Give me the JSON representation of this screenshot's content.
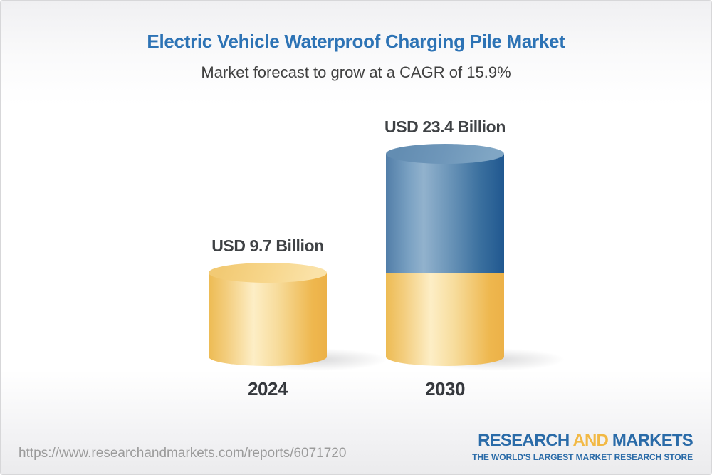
{
  "header": {
    "title": "Electric Vehicle Waterproof Charging Pile Market",
    "subtitle": "Market forecast to grow at a CAGR of 15.9%"
  },
  "chart_data": {
    "type": "bar",
    "bar_style": "3d-cylinder-stacked",
    "categories": [
      "2024",
      "2030"
    ],
    "values": [
      9.7,
      23.4
    ],
    "unit": "USD Billion",
    "value_labels": [
      "USD 9.7 Billion",
      "USD 23.4 Billion"
    ],
    "cagr_percent": 15.9,
    "legend": "none",
    "axes": "none",
    "colors": {
      "base_segment": "#f0bc54",
      "growth_segment": "#4a7aa7",
      "title": "#2d73b5",
      "label_text": "#3f4245"
    }
  },
  "footer": {
    "url": "https://www.researchandmarkets.com/reports/6071720",
    "logo": {
      "word1": "RESEARCH",
      "word2": "AND",
      "word3": "MARKETS",
      "tagline": "THE WORLD'S LARGEST MARKET RESEARCH STORE",
      "blue": "#2a6ba8",
      "gold": "#f2b945"
    }
  }
}
